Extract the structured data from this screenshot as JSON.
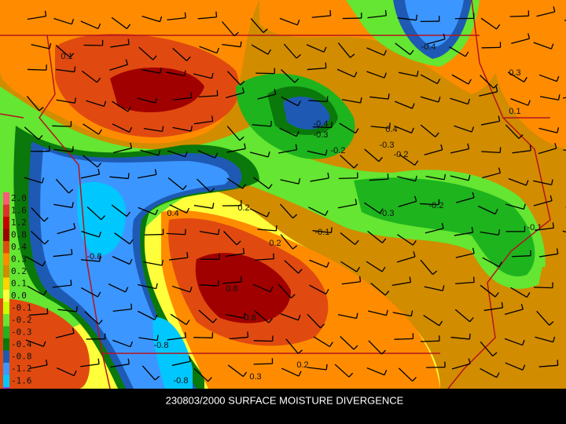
{
  "caption": "230803/2000 SURFACE MOISTURE DIVERGENCE",
  "legend": [
    {
      "label": "2.0",
      "color": "#ff5a78"
    },
    {
      "label": "1.6",
      "color": "#e03030"
    },
    {
      "label": "1.2",
      "color": "#c80000"
    },
    {
      "label": "0.8",
      "color": "#a00000"
    },
    {
      "label": "0.4",
      "color": "#e04a10"
    },
    {
      "label": "0.3",
      "color": "#ff8c00"
    },
    {
      "label": "0.2",
      "color": "#d28c00"
    },
    {
      "label": "0.1",
      "color": "#ffd200"
    },
    {
      "label": "0.0",
      "color": "#ffff3c"
    },
    {
      "label": "-0.1",
      "color": "#c8ff00"
    },
    {
      "label": "-0.2",
      "color": "#64e632"
    },
    {
      "label": "-0.3",
      "color": "#1eb41e"
    },
    {
      "label": "-0.4",
      "color": "#0a780a"
    },
    {
      "label": "-0.8",
      "color": "#1e5ab4"
    },
    {
      "label": "-1.2",
      "color": "#3c96ff"
    },
    {
      "label": "-1.6",
      "color": "#00c8ff"
    },
    {
      "color": "#8c3cdc"
    }
  ],
  "contour_labels": [
    "-0.8",
    "-0.8",
    "-0.8",
    "0.8",
    "0.8",
    "-0.4",
    "-0.4",
    "0.4",
    "0.4",
    "-0.3",
    "-0.3",
    "0.3",
    "0.3",
    "-0.2",
    "-0.2",
    "0.2",
    "0.2",
    "0.2",
    "-0.1",
    "-0.1",
    "0.1",
    "0.1",
    "-0.3",
    "-0.2"
  ]
}
